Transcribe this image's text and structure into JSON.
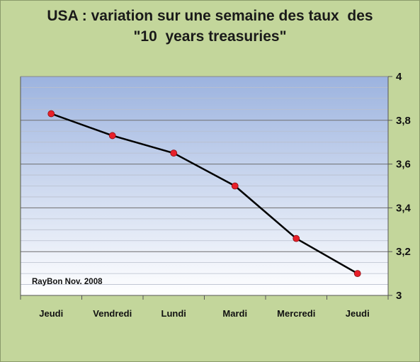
{
  "chart_data": {
    "type": "line",
    "title_lines": [
      "USA : variation sur une semaine des taux  des",
      "\"10  years treasuries\""
    ],
    "categories": [
      "Jeudi",
      "Vendredi",
      "Lundi",
      "Mardi",
      "Mercredi",
      "Jeudi"
    ],
    "series": [
      {
        "values": [
          3.83,
          3.73,
          3.65,
          3.5,
          3.26,
          3.1
        ]
      }
    ],
    "ylim": [
      3,
      4
    ],
    "y_ticks": [
      3,
      3.2,
      3.4,
      3.6,
      3.8,
      4
    ],
    "y_tick_labels": [
      "3",
      "3,2",
      "3,4",
      "3,6",
      "3,8",
      "4"
    ],
    "y_axis_side": "right",
    "grid": true,
    "legend": "none",
    "annotation": "RayBon Nov. 2008",
    "colors": {
      "background": "#c3d69b",
      "plot_top": "#9cb3df",
      "plot_bottom": "#ffffff",
      "line": "#000000",
      "marker": "#e8202a"
    }
  }
}
